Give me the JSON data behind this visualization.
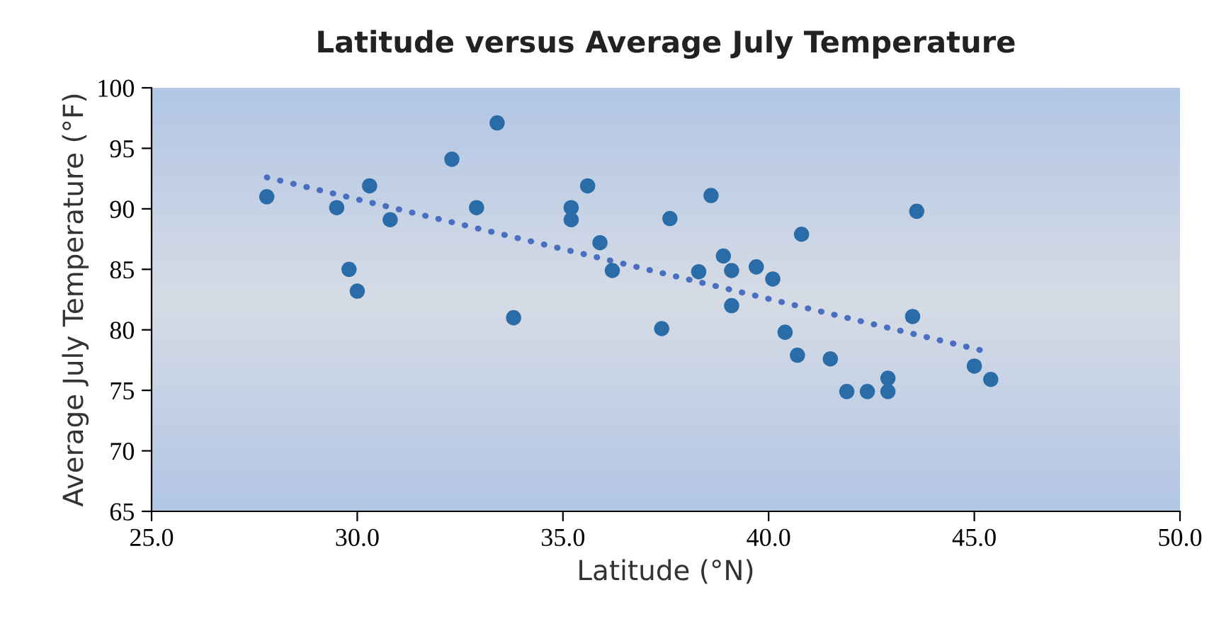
{
  "chart_data": {
    "type": "scatter",
    "title": "Latitude versus Average July Temperature",
    "xlabel": "Latitude (°N)",
    "ylabel": "Average July Temperature (°F)",
    "xlim": [
      25,
      50
    ],
    "xticks": [
      {
        "value": 25,
        "label": "25.0"
      },
      {
        "value": 30,
        "label": "30.0"
      },
      {
        "value": 35,
        "label": "35.0"
      },
      {
        "value": 40,
        "label": "40.0"
      },
      {
        "value": 45,
        "label": "45.0"
      },
      {
        "value": 50,
        "label": "50.0"
      }
    ],
    "ylim": [
      65,
      100
    ],
    "yticks": [
      65,
      70,
      75,
      80,
      85,
      90,
      95,
      100
    ],
    "grid": false,
    "legend": false,
    "series": [
      {
        "marker": "circle",
        "color": "#2a6ca8",
        "x": [
          27.8,
          29.5,
          29.8,
          30.0,
          30.3,
          30.8,
          32.3,
          32.9,
          33.4,
          33.8,
          35.2,
          35.2,
          35.6,
          35.9,
          36.2,
          37.4,
          37.6,
          38.3,
          38.6,
          38.9,
          39.1,
          39.1,
          39.7,
          40.1,
          40.4,
          40.7,
          40.8,
          41.5,
          41.9,
          42.4,
          42.9,
          42.9,
          43.5,
          43.6,
          45.0,
          45.4
        ],
        "values": [
          91,
          90.1,
          85,
          83.2,
          91.9,
          89.1,
          94.1,
          90.1,
          97.1,
          81,
          90.1,
          89.1,
          91.9,
          87.2,
          84.9,
          80.1,
          89.2,
          84.8,
          91.1,
          86.1,
          84.9,
          82,
          85.2,
          84.2,
          79.8,
          77.9,
          87.9,
          77.6,
          74.9,
          74.9,
          76,
          74.9,
          81.1,
          89.8,
          77,
          75.9
        ]
      },
      {
        "type": "line",
        "color": "#4a6fc0",
        "line_style": "dotted",
        "x": [
          27.8,
          45.3
        ],
        "values": [
          92.6,
          78.2
        ]
      }
    ]
  }
}
